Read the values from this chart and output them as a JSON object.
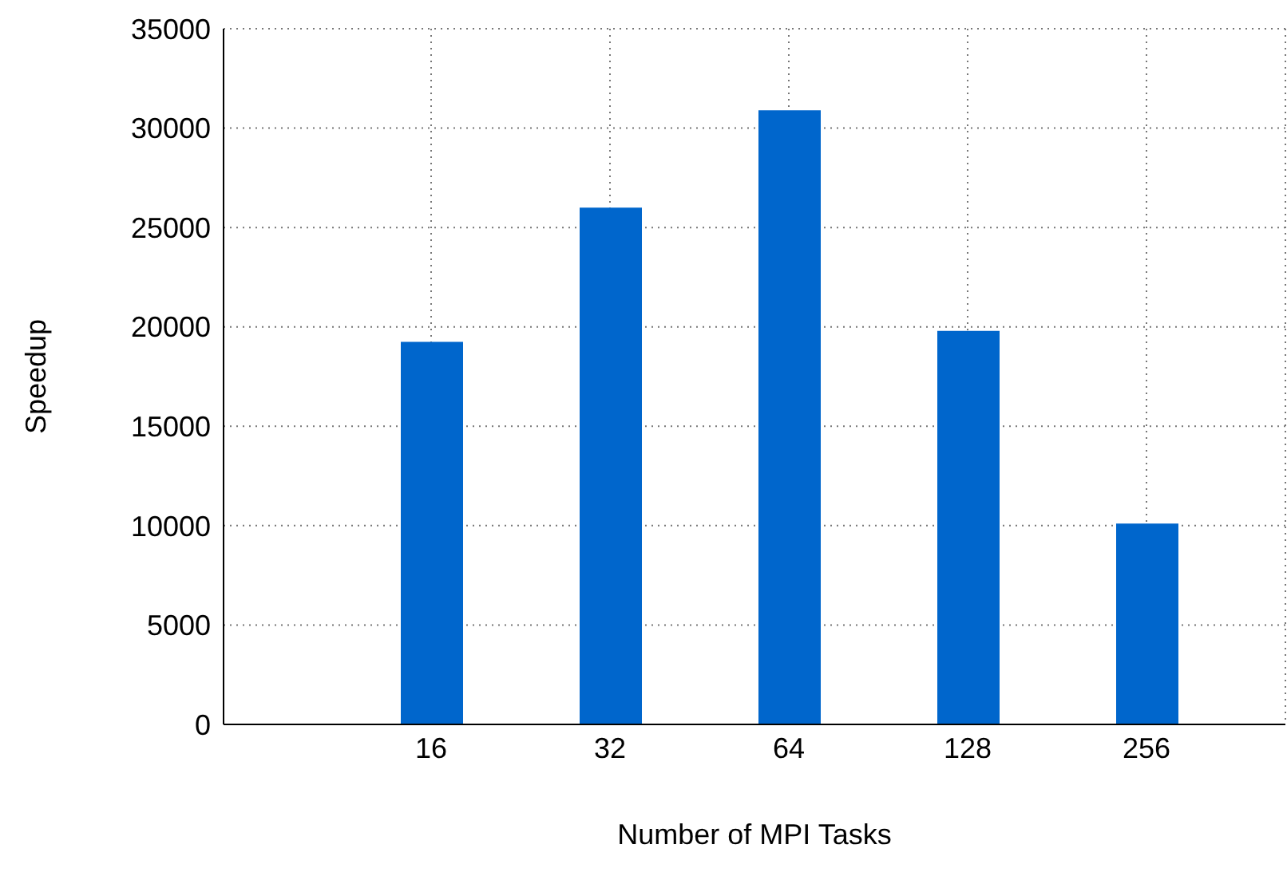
{
  "chart_data": {
    "type": "bar",
    "xlabel": "Number of MPI Tasks",
    "ylabel": "Speedup",
    "categories": [
      "16",
      "32",
      "64",
      "128",
      "256"
    ],
    "values": [
      19250,
      26000,
      30900,
      19800,
      10100
    ],
    "color": "#0066cc",
    "ylim": [
      0,
      35000
    ],
    "yticks": [
      0,
      5000,
      10000,
      15000,
      20000,
      25000,
      30000,
      35000
    ],
    "grid": true
  }
}
